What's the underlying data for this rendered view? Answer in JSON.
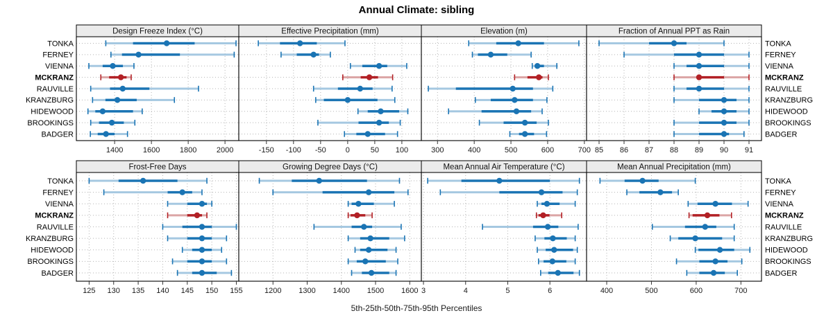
{
  "title": "Annual Climate: sibling",
  "caption": "5th-25th-50th-75th-95th Percentiles",
  "stations": [
    "TONKA",
    "FERNEY",
    "VIENNA",
    "MCKRANZ",
    "RAUVILLE",
    "KRANZBURG",
    "HIDEWOOD",
    "BROOKINGS",
    "BADGER"
  ],
  "highlight_station": "MCKRANZ",
  "colors": {
    "series": "#1a74b4",
    "series_light": "#a5c8e1",
    "highlight": "#b22025",
    "highlight_light": "#dba5a5",
    "strip_bg": "#ebebeb",
    "border": "#000000",
    "grid": "#b3b3b3",
    "tick_text": "#1a1a1a"
  },
  "chart_data": {
    "type": "trellis-whisker",
    "note": "each values row = [p5,p25,p50,p75,p95] per station, station order as in stations[]",
    "percentile_levels": [
      5,
      25,
      50,
      75,
      95
    ],
    "panels": [
      {
        "title": "Design Freeze Index (°C)",
        "row": 0,
        "col": 0,
        "xlim": [
          1192,
          2075
        ],
        "xticks": [
          1400,
          1600,
          1800,
          2000
        ],
        "values": [
          [
            1352,
            1500,
            1683,
            1835,
            2060
          ],
          [
            1380,
            1440,
            1530,
            1755,
            2050
          ],
          [
            1260,
            1335,
            1390,
            1445,
            1505
          ],
          [
            1325,
            1370,
            1434,
            1465,
            1490
          ],
          [
            1270,
            1375,
            1444,
            1589,
            1856
          ],
          [
            1280,
            1350,
            1415,
            1520,
            1725
          ],
          [
            1255,
            1295,
            1335,
            1500,
            1550
          ],
          [
            1270,
            1315,
            1385,
            1450,
            1510
          ],
          [
            1268,
            1308,
            1353,
            1400,
            1470
          ]
        ]
      },
      {
        "title": "Effective Precipitation (mm)",
        "row": 0,
        "col": 1,
        "xlim": [
          -201,
          136
        ],
        "xticks": [
          -150,
          -100,
          -50,
          0,
          50,
          100
        ],
        "values": [
          [
            -165,
            -125,
            -88,
            -57,
            -5
          ],
          [
            -123,
            -94,
            -63,
            -53,
            -32
          ],
          [
            5,
            27,
            58,
            73,
            109
          ],
          [
            -9,
            24,
            40,
            56,
            83
          ],
          [
            -63,
            -18,
            23,
            46,
            82
          ],
          [
            -59,
            -44,
            0,
            55,
            87
          ],
          [
            19,
            37,
            61,
            95,
            111
          ],
          [
            -55,
            20,
            58,
            76,
            97
          ],
          [
            -6,
            16,
            37,
            69,
            92
          ]
        ]
      },
      {
        "title": "Elevation (m)",
        "row": 0,
        "col": 2,
        "xlim": [
          256,
          706
        ],
        "xticks": [
          300,
          400,
          500,
          600,
          700
        ],
        "values": [
          [
            385,
            460,
            520,
            590,
            685
          ],
          [
            395,
            410,
            445,
            490,
            555
          ],
          [
            558,
            565,
            572,
            590,
            625
          ],
          [
            510,
            545,
            576,
            586,
            602
          ],
          [
            275,
            350,
            505,
            560,
            614
          ],
          [
            403,
            445,
            510,
            560,
            598
          ],
          [
            330,
            420,
            515,
            555,
            585
          ],
          [
            414,
            480,
            538,
            570,
            602
          ],
          [
            497,
            522,
            538,
            563,
            597
          ]
        ]
      },
      {
        "title": "Fraction of Annual PPT as Rain",
        "row": 0,
        "col": 3,
        "xlim": [
          84.5,
          91.5
        ],
        "xticks": [
          85,
          86,
          87,
          88,
          89,
          90,
          91
        ],
        "values": [
          [
            85,
            87,
            88,
            88.5,
            90
          ],
          [
            86,
            88,
            89,
            90,
            91
          ],
          [
            88,
            88.5,
            89,
            90,
            91
          ],
          [
            88,
            89,
            89,
            90,
            91
          ],
          [
            88,
            88.5,
            89,
            90,
            91
          ],
          [
            88,
            89,
            90,
            90.5,
            91
          ],
          [
            89,
            89.5,
            90,
            90.5,
            91
          ],
          [
            88,
            89,
            90,
            90.5,
            91
          ],
          [
            88,
            89,
            90,
            90.2,
            90.8
          ]
        ]
      },
      {
        "title": "Frost-Free Days",
        "row": 1,
        "col": 0,
        "xlim": [
          122.4,
          155.5
        ],
        "xticks": [
          125,
          130,
          135,
          140,
          145,
          150,
          155
        ],
        "values": [
          [
            125,
            131,
            136,
            143,
            149
          ],
          [
            128,
            141,
            144,
            146,
            148
          ],
          [
            141,
            145,
            148,
            149,
            150
          ],
          [
            141,
            145,
            147,
            148,
            149
          ],
          [
            140,
            144,
            148,
            150,
            155
          ],
          [
            141,
            145,
            148,
            150,
            153
          ],
          [
            144,
            146,
            148,
            150,
            152
          ],
          [
            142,
            145,
            148,
            150,
            153
          ],
          [
            143,
            146,
            148,
            151,
            154
          ]
        ]
      },
      {
        "title": "Growing Degree Days (°C)",
        "row": 1,
        "col": 1,
        "xlim": [
          1100,
          1634
        ],
        "xticks": [
          1200,
          1300,
          1400,
          1500,
          1600
        ],
        "values": [
          [
            1160,
            1255,
            1335,
            1475,
            1570
          ],
          [
            1200,
            1345,
            1480,
            1555,
            1595
          ],
          [
            1420,
            1430,
            1450,
            1495,
            1555
          ],
          [
            1420,
            1427,
            1446,
            1470,
            1490
          ],
          [
            1320,
            1430,
            1466,
            1490,
            1575
          ],
          [
            1420,
            1455,
            1485,
            1540,
            1585
          ],
          [
            1440,
            1455,
            1480,
            1535,
            1560
          ],
          [
            1420,
            1445,
            1470,
            1530,
            1565
          ],
          [
            1430,
            1460,
            1488,
            1540,
            1560
          ]
        ]
      },
      {
        "title": "Mean Annual Air Temperature (°C)",
        "row": 1,
        "col": 2,
        "xlim": [
          2.95,
          6.87
        ],
        "xticks": [
          3,
          4,
          5,
          6
        ],
        "values": [
          [
            3.1,
            3.9,
            4.8,
            6.0,
            6.7
          ],
          [
            3.4,
            4.8,
            5.8,
            6.3,
            6.65
          ],
          [
            5.7,
            5.8,
            5.93,
            6.23,
            6.6
          ],
          [
            5.68,
            5.73,
            5.84,
            5.99,
            6.28
          ],
          [
            4.4,
            5.6,
            5.95,
            6.2,
            6.67
          ],
          [
            5.65,
            5.87,
            6.07,
            6.4,
            6.6
          ],
          [
            5.7,
            5.9,
            6.1,
            6.55,
            6.65
          ],
          [
            5.73,
            5.85,
            6.06,
            6.39,
            6.6
          ],
          [
            5.78,
            5.96,
            6.19,
            6.56,
            6.7
          ]
        ]
      },
      {
        "title": "Mean Annual Precipitation (mm)",
        "row": 1,
        "col": 3,
        "xlim": [
          355,
          746
        ],
        "xticks": [
          400,
          500,
          600,
          700
        ],
        "values": [
          [
            385,
            440,
            480,
            516,
            598
          ],
          [
            445,
            473,
            520,
            546,
            560
          ],
          [
            582,
            603,
            643,
            680,
            716
          ],
          [
            584,
            592,
            625,
            652,
            679
          ],
          [
            502,
            575,
            620,
            645,
            685
          ],
          [
            542,
            560,
            598,
            658,
            685
          ],
          [
            598,
            605,
            653,
            685,
            720
          ],
          [
            556,
            607,
            643,
            670,
            702
          ],
          [
            579,
            607,
            639,
            664,
            692
          ]
        ]
      }
    ]
  }
}
